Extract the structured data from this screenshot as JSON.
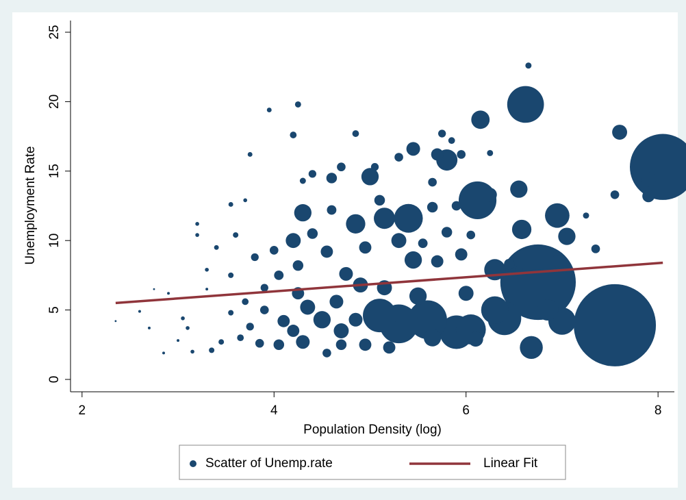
{
  "chart_data": {
    "type": "scatter",
    "x_label": "Population Density (log)",
    "y_label": "Unemployment Rate",
    "xlim": [
      1.88,
      8.17
    ],
    "ylim": [
      -0.89,
      25.84
    ],
    "xticks": [
      2,
      4,
      6,
      8
    ],
    "yticks": [
      0,
      5,
      10,
      15,
      20,
      25
    ],
    "legend": "bottom",
    "series": [
      {
        "name": "Scatter of Unemp.rate",
        "type": "scatter",
        "color": "#1a476f",
        "x": [
          7.55,
          6.75,
          8.05,
          6.62,
          6.65,
          6.12,
          6.15,
          7.6,
          6.55,
          6.95,
          7.0,
          6.68,
          6.3,
          5.9,
          6.05,
          6.4,
          5.6,
          5.3,
          5.1,
          5.4,
          5.15,
          5.0,
          5.8,
          5.45,
          5.7,
          5.95,
          4.3,
          4.85,
          4.6,
          4.2,
          4.25,
          4.5,
          4.7,
          4.3,
          4.05,
          3.85,
          4.9,
          5.45,
          5.3,
          5.95,
          6.58,
          7.05,
          7.35,
          7.55,
          7.9,
          6.25,
          5.65,
          5.65,
          4.75,
          4.55,
          4.0,
          3.8,
          3.6,
          3.55,
          3.4,
          3.2,
          3.2,
          3.1,
          3.0,
          2.85,
          2.7,
          2.6,
          2.35,
          2.9,
          3.3,
          3.55,
          3.7,
          3.75,
          3.95,
          4.25,
          4.2,
          4.85,
          5.75,
          5.85,
          6.25,
          4.4,
          4.3,
          4.7,
          5.05,
          5.3,
          5.1,
          5.9,
          5.8,
          6.05,
          5.55,
          5.7,
          6.0,
          6.3,
          6.85,
          5.5,
          5.15,
          5.2,
          4.95,
          5.65,
          6.1,
          4.7,
          4.55,
          4.2,
          4.35,
          4.1,
          3.9,
          3.75,
          3.65,
          3.45,
          3.35,
          3.15,
          3.05,
          3.55,
          3.7,
          3.9,
          4.05,
          4.25,
          4.4,
          4.6,
          4.95,
          4.65,
          4.85,
          7.25,
          7.9,
          6.45,
          6.55,
          6.95,
          2.75,
          3.3
        ],
        "values": [
          3.9,
          7.0,
          15.3,
          19.8,
          22.6,
          12.9,
          18.7,
          17.8,
          13.7,
          11.8,
          4.2,
          2.3,
          7.9,
          3.4,
          3.6,
          4.4,
          4.3,
          4.0,
          4.6,
          11.6,
          11.6,
          14.6,
          15.8,
          16.6,
          16.2,
          16.2,
          12.0,
          11.2,
          14.5,
          10.0,
          6.2,
          4.3,
          3.5,
          2.7,
          2.5,
          2.6,
          6.8,
          8.6,
          10.0,
          9.0,
          10.8,
          10.3,
          9.4,
          13.3,
          13.2,
          13.3,
          12.4,
          14.2,
          7.6,
          9.2,
          9.3,
          8.8,
          10.4,
          7.5,
          9.5,
          11.2,
          10.4,
          3.7,
          2.8,
          1.9,
          3.7,
          4.9,
          4.2,
          6.2,
          7.9,
          12.6,
          12.9,
          16.2,
          19.4,
          19.8,
          17.6,
          17.7,
          17.7,
          17.2,
          16.3,
          14.8,
          14.3,
          15.3,
          15.3,
          16.0,
          12.9,
          12.5,
          10.6,
          10.4,
          9.8,
          8.5,
          6.2,
          5.0,
          5.0,
          6.0,
          6.6,
          2.3,
          2.5,
          3.0,
          2.9,
          2.5,
          1.9,
          3.5,
          5.2,
          4.2,
          5.0,
          3.8,
          3.0,
          2.7,
          2.1,
          2.0,
          4.4,
          4.8,
          5.6,
          6.6,
          7.5,
          8.2,
          10.5,
          12.2,
          9.5,
          5.6,
          4.3,
          11.8,
          14.4,
          8.3,
          7.9,
          8.5,
          6.5,
          6.5
        ],
        "sizes": [
          900,
          760,
          580,
          180,
          5,
          190,
          45,
          30,
          40,
          80,
          100,
          70,
          60,
          150,
          120,
          150,
          200,
          200,
          150,
          110,
          60,
          40,
          60,
          25,
          20,
          10,
          40,
          50,
          15,
          30,
          20,
          40,
          30,
          25,
          15,
          10,
          30,
          40,
          30,
          20,
          50,
          40,
          10,
          10,
          20,
          25,
          15,
          10,
          25,
          20,
          10,
          8,
          4,
          4,
          3,
          2,
          2,
          2,
          1,
          1,
          1,
          1,
          0.5,
          1,
          2,
          3,
          2,
          3,
          3,
          5,
          6,
          6,
          8,
          6,
          5,
          8,
          5,
          10,
          8,
          10,
          15,
          12,
          15,
          10,
          12,
          20,
          30,
          100,
          60,
          40,
          30,
          20,
          20,
          40,
          30,
          15,
          10,
          20,
          30,
          20,
          10,
          8,
          6,
          4,
          4,
          2,
          2,
          4,
          6,
          8,
          12,
          15,
          15,
          12,
          20,
          25,
          25,
          5,
          30,
          15,
          8,
          20,
          0.5,
          1
        ]
      },
      {
        "name": "Linear Fit",
        "type": "line",
        "color": "#90353b",
        "x": [
          2.35,
          8.05
        ],
        "values": [
          5.5,
          8.4
        ]
      }
    ]
  }
}
